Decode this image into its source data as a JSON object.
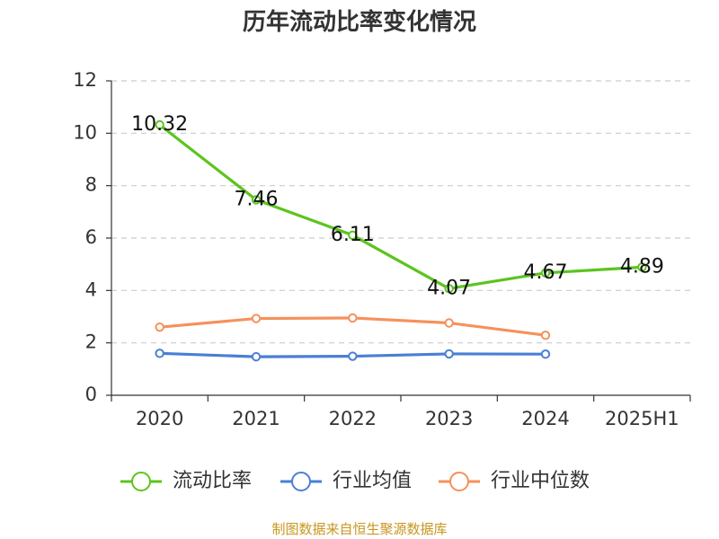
{
  "title": "历年流动比率变化情况",
  "source": "制图数据来自恒生聚源数据库",
  "chart_data": {
    "type": "line",
    "title": "历年流动比率变化情况",
    "categories": [
      "2020",
      "2021",
      "2022",
      "2023",
      "2024",
      "2025H1"
    ],
    "ylim": [
      0,
      12
    ],
    "yticks": [
      0,
      2,
      4,
      6,
      8,
      10,
      12
    ],
    "grid": true,
    "legend_position": "bottom",
    "series": [
      {
        "name": "流动比率",
        "color": "#5cc41e",
        "values": [
          10.32,
          7.46,
          6.11,
          4.07,
          4.67,
          4.89
        ],
        "labels": [
          "10.32",
          "7.46",
          "6.11",
          "4.07",
          "4.67",
          "4.89"
        ]
      },
      {
        "name": "行业均值",
        "color": "#4a7fd6",
        "values": [
          1.6,
          1.47,
          1.49,
          1.58,
          1.57,
          null
        ]
      },
      {
        "name": "行业中位数",
        "color": "#f5915c",
        "values": [
          2.6,
          2.93,
          2.95,
          2.76,
          2.29,
          null
        ]
      }
    ]
  }
}
